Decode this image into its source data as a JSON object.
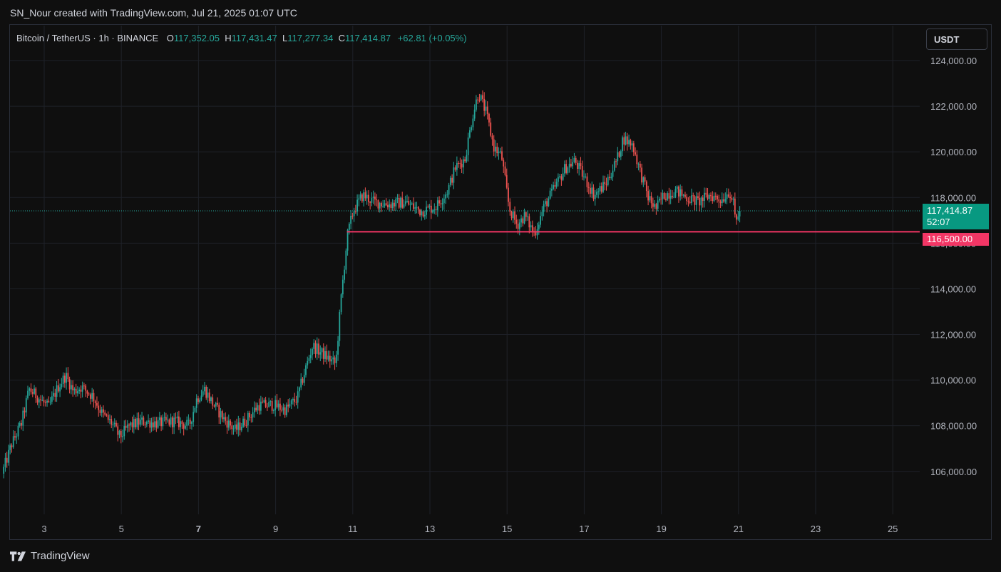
{
  "caption": "SN_Nour created with TradingView.com, Jul 21, 2025 01:07 UTC",
  "legend": {
    "symbol": "Bitcoin / TetherUS · 1h · BINANCE",
    "o_label": "O",
    "o_value": "117,352.05",
    "h_label": "H",
    "h_value": "117,431.47",
    "l_label": "L",
    "l_value": "117,277.34",
    "c_label": "C",
    "c_value": "117,414.87",
    "change": "+62.81 (+0.05%)"
  },
  "currency_button": "USDT",
  "last_price_tag": {
    "price": "117,414.87",
    "countdown": "52:07"
  },
  "level_tag": "116,500.00",
  "brand": "TradingView",
  "colors": {
    "up": "#26a69a",
    "down": "#ef5350",
    "level": "#f23665",
    "last_tag": "#089981",
    "grid": "#1e2128",
    "axis_text": "#b2b5be"
  },
  "chart_data": {
    "type": "candlestick",
    "interval": "1h",
    "currency": "USDT",
    "ylim": [
      104000,
      125500
    ],
    "y_ticks": [
      "106,000.00",
      "108,000.00",
      "110,000.00",
      "112,000.00",
      "114,000.00",
      "116,000.00",
      "118,000.00",
      "120,000.00",
      "122,000.00",
      "124,000.00"
    ],
    "x_ticks": [
      "3",
      "5",
      "7",
      "9",
      "11",
      "13",
      "15",
      "17",
      "19",
      "21",
      "23",
      "25"
    ],
    "x_bold_ticks": [
      "7"
    ],
    "day_range": [
      1.93,
      26.0
    ],
    "last_price": 117414.87,
    "horizontal_level": {
      "value": 116500,
      "from_day": 10.85
    },
    "price_path": [
      [
        1.95,
        105900
      ],
      [
        2.2,
        107200
      ],
      [
        2.45,
        108100
      ],
      [
        2.65,
        109600
      ],
      [
        2.85,
        109300
      ],
      [
        3.15,
        108800
      ],
      [
        3.4,
        109700
      ],
      [
        3.6,
        110200
      ],
      [
        3.8,
        109500
      ],
      [
        4.0,
        109700
      ],
      [
        4.3,
        109300
      ],
      [
        4.55,
        108500
      ],
      [
        4.8,
        108100
      ],
      [
        5.0,
        107500
      ],
      [
        5.25,
        108000
      ],
      [
        5.6,
        108200
      ],
      [
        6.0,
        108100
      ],
      [
        6.4,
        108200
      ],
      [
        6.8,
        108000
      ],
      [
        7.0,
        109200
      ],
      [
        7.2,
        109600
      ],
      [
        7.4,
        109000
      ],
      [
        7.7,
        108300
      ],
      [
        8.0,
        107800
      ],
      [
        8.3,
        108300
      ],
      [
        8.6,
        108900
      ],
      [
        9.0,
        108900
      ],
      [
        9.3,
        108700
      ],
      [
        9.6,
        109200
      ],
      [
        9.8,
        110400
      ],
      [
        10.0,
        111500
      ],
      [
        10.3,
        111100
      ],
      [
        10.6,
        110700
      ],
      [
        10.75,
        113800
      ],
      [
        10.9,
        116300
      ],
      [
        11.05,
        117400
      ],
      [
        11.3,
        118100
      ],
      [
        11.6,
        117800
      ],
      [
        12.0,
        117700
      ],
      [
        12.4,
        117800
      ],
      [
        12.8,
        117400
      ],
      [
        13.2,
        117600
      ],
      [
        13.5,
        118300
      ],
      [
        13.7,
        119300
      ],
      [
        13.95,
        119700
      ],
      [
        14.15,
        121600
      ],
      [
        14.3,
        122600
      ],
      [
        14.5,
        121700
      ],
      [
        14.7,
        120200
      ],
      [
        14.9,
        119800
      ],
      [
        15.1,
        117500
      ],
      [
        15.3,
        116800
      ],
      [
        15.5,
        117200
      ],
      [
        15.75,
        116400
      ],
      [
        16.0,
        117600
      ],
      [
        16.3,
        118500
      ],
      [
        16.55,
        119300
      ],
      [
        16.8,
        119600
      ],
      [
        17.0,
        119000
      ],
      [
        17.3,
        118100
      ],
      [
        17.6,
        118600
      ],
      [
        17.9,
        119700
      ],
      [
        18.05,
        120600
      ],
      [
        18.3,
        120300
      ],
      [
        18.5,
        119100
      ],
      [
        18.7,
        118000
      ],
      [
        18.9,
        117500
      ],
      [
        19.1,
        118100
      ],
      [
        19.4,
        118300
      ],
      [
        19.7,
        118000
      ],
      [
        20.0,
        117800
      ],
      [
        20.3,
        118100
      ],
      [
        20.6,
        117900
      ],
      [
        20.8,
        118300
      ],
      [
        20.9,
        117800
      ],
      [
        20.97,
        116900
      ],
      [
        21.05,
        117414.87
      ]
    ]
  }
}
